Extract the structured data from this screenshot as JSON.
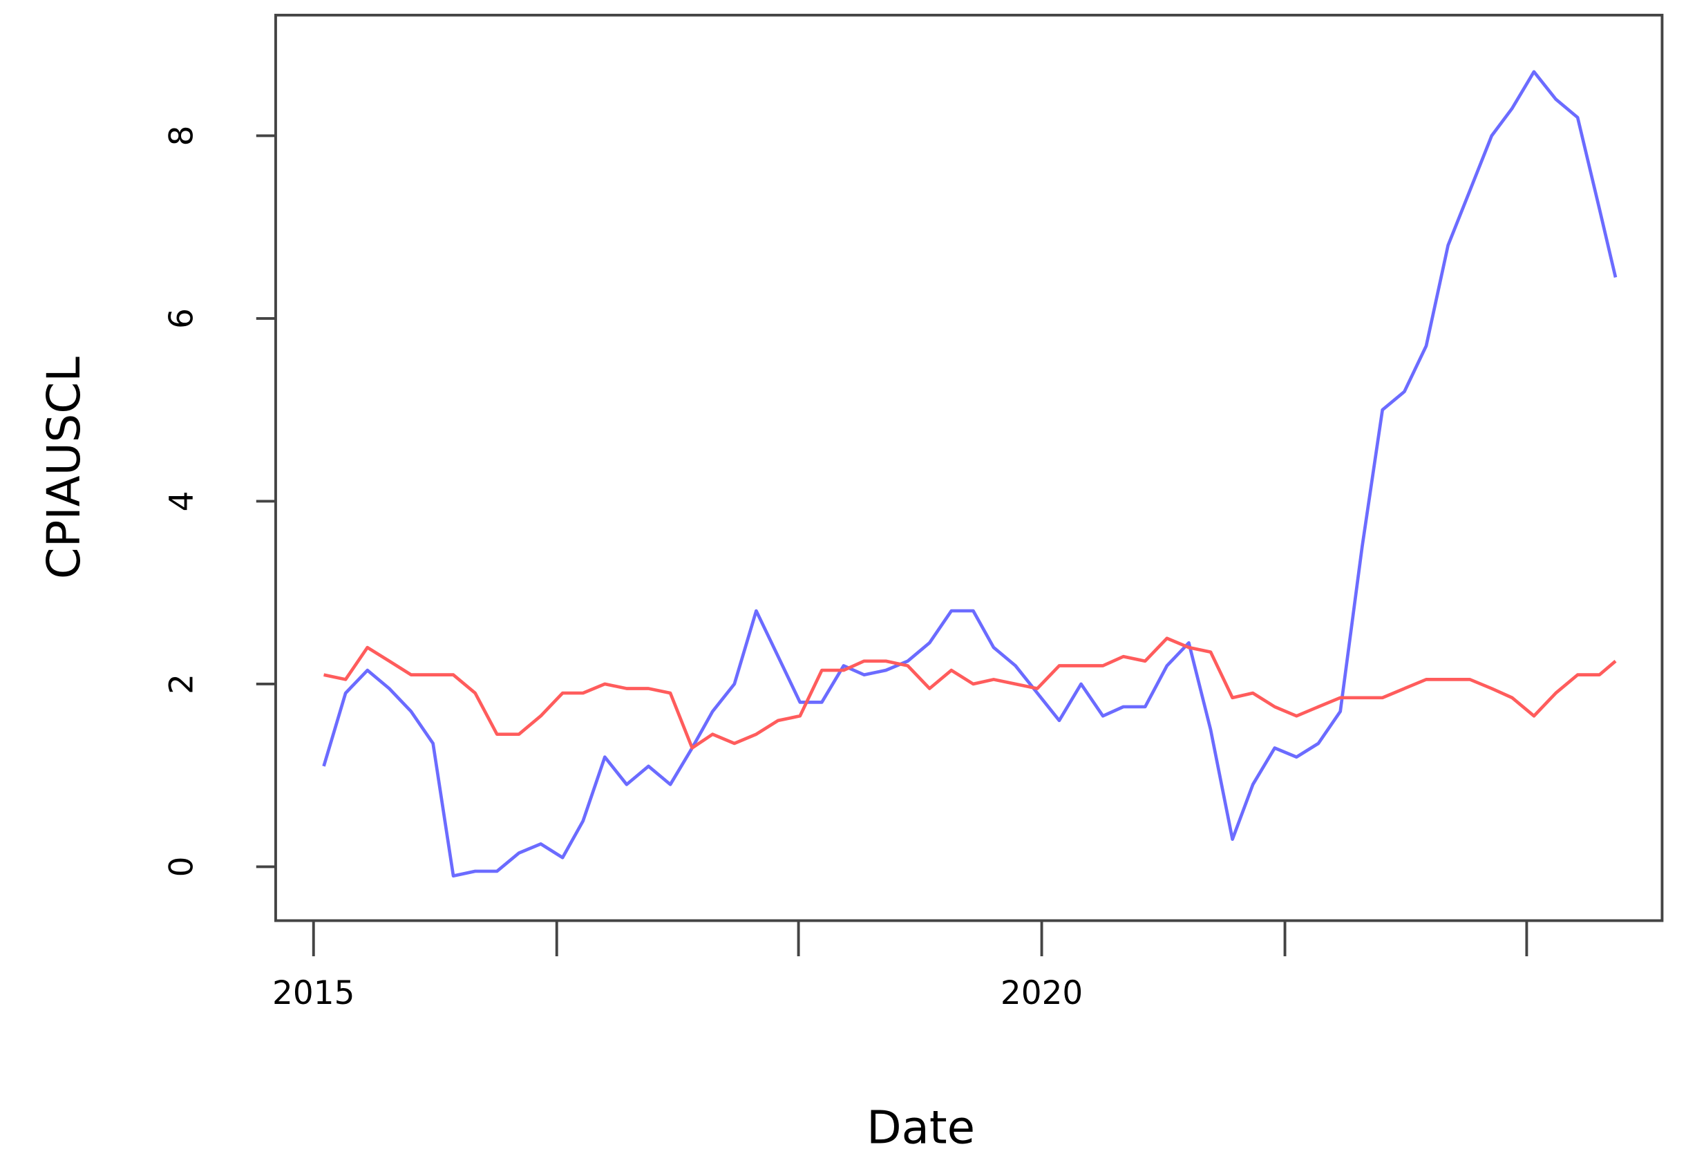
{
  "chart_data": {
    "type": "line",
    "x_label": "Date",
    "y_label": "CPIAUSCL",
    "x": [
      2015.07,
      2015.22,
      2015.37,
      2015.52,
      2015.67,
      2015.82,
      2015.96,
      2016.11,
      2016.26,
      2016.41,
      2016.56,
      2016.71,
      2016.85,
      2017.0,
      2017.15,
      2017.3,
      2017.45,
      2017.6,
      2017.74,
      2017.89,
      2018.04,
      2018.19,
      2018.34,
      2018.49,
      2018.64,
      2018.78,
      2018.93,
      2019.08,
      2019.23,
      2019.38,
      2019.53,
      2019.67,
      2019.82,
      2019.97,
      2020.12,
      2020.27,
      2020.42,
      2020.56,
      2020.71,
      2020.86,
      2021.01,
      2021.16,
      2021.31,
      2021.45,
      2021.6,
      2021.75,
      2021.9,
      2022.05,
      2022.2,
      2022.34,
      2022.49,
      2022.64,
      2022.79,
      2022.94,
      2023.09,
      2023.23,
      2023.38,
      2023.53,
      2023.68,
      2023.83,
      2023.94
    ],
    "series": [
      {
        "color": "#6b6bff",
        "values": [
          1.1,
          1.9,
          2.15,
          1.95,
          1.7,
          1.35,
          -0.1,
          -0.05,
          -0.05,
          0.15,
          0.25,
          0.1,
          0.5,
          1.2,
          0.9,
          1.1,
          0.9,
          1.3,
          1.7,
          2.0,
          2.8,
          2.3,
          1.8,
          1.8,
          2.2,
          2.1,
          2.15,
          2.25,
          2.45,
          2.8,
          2.8,
          2.4,
          2.2,
          1.9,
          1.6,
          2.0,
          1.65,
          1.75,
          1.75,
          2.2,
          2.45,
          1.5,
          0.3,
          0.9,
          1.3,
          1.2,
          1.35,
          1.7,
          3.5,
          5.0,
          5.2,
          5.7,
          6.8,
          7.4,
          8.0,
          8.3,
          8.7,
          8.4,
          8.2,
          7.2,
          6.45
        ]
      },
      {
        "color": "#ff5c5c",
        "values": [
          2.1,
          2.05,
          2.4,
          2.25,
          2.1,
          2.1,
          2.1,
          1.9,
          1.45,
          1.45,
          1.65,
          1.9,
          1.9,
          2.0,
          1.95,
          1.95,
          1.9,
          1.3,
          1.45,
          1.35,
          1.45,
          1.6,
          1.65,
          2.15,
          2.15,
          2.25,
          2.25,
          2.2,
          1.95,
          2.15,
          2.0,
          2.05,
          2.0,
          1.95,
          2.2,
          2.2,
          2.2,
          2.3,
          2.25,
          2.5,
          2.4,
          2.35,
          1.85,
          1.9,
          1.75,
          1.65,
          1.75,
          1.85,
          1.85,
          1.85,
          1.95,
          2.05,
          2.05,
          2.05,
          1.95,
          1.85,
          1.65,
          1.9,
          2.1,
          2.1,
          2.25
        ]
      }
    ],
    "xlim": [
      2014.74,
      2024.26
    ],
    "ylim": [
      -0.59,
      9.32
    ],
    "xticks": [
      2015,
      {
        "value": 2016.67,
        "label": null
      },
      {
        "value": 2018.33,
        "label": null
      },
      2020,
      {
        "value": 2021.67,
        "label": null
      },
      {
        "value": 2023.33,
        "label": null
      }
    ],
    "yticks": [
      0,
      2,
      4,
      6,
      8
    ]
  }
}
